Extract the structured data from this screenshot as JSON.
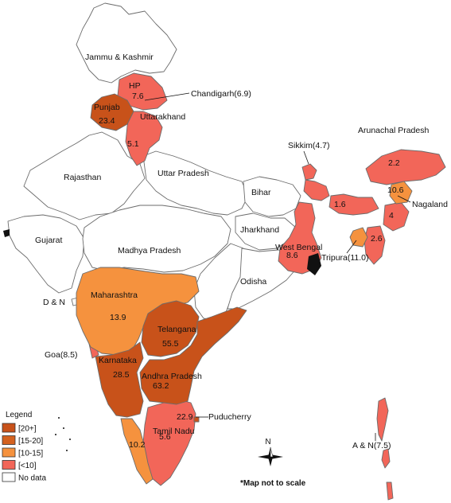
{
  "colors": {
    "band_20_plus": "#c8521a",
    "band_15_20": "#d4621f",
    "band_10_15": "#f5923e",
    "band_lt_10": "#f26659",
    "no_data": "#ffffff",
    "border": "#6b6b6b"
  },
  "legend": {
    "title": "Legend",
    "items": [
      {
        "label": "[20+]",
        "color_key": "band_20_plus"
      },
      {
        "label": "[15-20]",
        "color_key": "band_15_20"
      },
      {
        "label": "[10-15]",
        "color_key": "band_10_15"
      },
      {
        "label": "[<10]",
        "color_key": "band_lt_10"
      },
      {
        "label": "No data",
        "color_key": "no_data"
      }
    ]
  },
  "regions": [
    {
      "name": "Jammu & Kashmir",
      "value": null,
      "band": "no_data"
    },
    {
      "name": "HP",
      "value": 7.6,
      "band": "band_lt_10"
    },
    {
      "name": "Chandigarh",
      "value": 6.9,
      "band": "band_lt_10"
    },
    {
      "name": "Punjab",
      "value": 23.4,
      "band": "band_20_plus"
    },
    {
      "name": "Uttarakhand",
      "value": 5.1,
      "band": "band_lt_10"
    },
    {
      "name": "Rajasthan",
      "value": null,
      "band": "no_data"
    },
    {
      "name": "Uttar Pradesh",
      "value": null,
      "band": "no_data"
    },
    {
      "name": "Bihar",
      "value": null,
      "band": "no_data"
    },
    {
      "name": "Sikkim",
      "value": 4.7,
      "band": "band_lt_10"
    },
    {
      "name": "Arunachal Pradesh",
      "value": 2.2,
      "band": "band_lt_10"
    },
    {
      "name": "Assam",
      "value": 1.6,
      "band": "band_lt_10"
    },
    {
      "name": "Nagaland",
      "value": 10.6,
      "band": "band_10_15"
    },
    {
      "name": "Manipur",
      "value": 4,
      "band": "band_lt_10"
    },
    {
      "name": "Mizoram",
      "value": 2.6,
      "band": "band_lt_10"
    },
    {
      "name": "Tripura",
      "value": 11.0,
      "band": "band_10_15"
    },
    {
      "name": "Jharkhand",
      "value": null,
      "band": "no_data"
    },
    {
      "name": "West Bengal",
      "value": 8.6,
      "band": "band_lt_10"
    },
    {
      "name": "Gujarat",
      "value": null,
      "band": "no_data"
    },
    {
      "name": "Madhya Pradesh",
      "value": null,
      "band": "no_data"
    },
    {
      "name": "Odisha",
      "value": null,
      "band": "no_data"
    },
    {
      "name": "D & N",
      "value": null,
      "band": "no_data"
    },
    {
      "name": "Maharashtra",
      "value": 13.9,
      "band": "band_10_15"
    },
    {
      "name": "Telangana",
      "value": 55.5,
      "band": "band_20_plus"
    },
    {
      "name": "Goa",
      "value": 8.5,
      "band": "band_lt_10"
    },
    {
      "name": "Karnataka",
      "value": 28.5,
      "band": "band_20_plus"
    },
    {
      "name": "Andhra Pradesh",
      "value": 63.2,
      "band": "band_20_plus"
    },
    {
      "name": "Puducherry",
      "value": 22.9,
      "band": "band_20_plus"
    },
    {
      "name": "Tamil Nadu",
      "value": 5.6,
      "band": "band_lt_10"
    },
    {
      "name": "Kerala",
      "value": 10.2,
      "band": "band_10_15"
    },
    {
      "name": "A & N",
      "value": 7.5,
      "band": "band_lt_10"
    }
  ],
  "labels": {
    "jk": "Jammu & Kashmir",
    "hp": "HP",
    "hp_value": "7.6",
    "chandigarh": "Chandigarh(6.9)",
    "punjab": "Punjab",
    "punjab_value": "23.4",
    "uttarakhand": "Uttarakhand",
    "uttarakhand_value": "5.1",
    "rajasthan": "Rajasthan",
    "uttar_pradesh": "Uttar Pradesh",
    "bihar": "Bihar",
    "sikkim": "Sikkim(4.7)",
    "arunachal": "Arunachal Pradesh",
    "arunachal_value": "2.2",
    "assam_value": "1.6",
    "nagaland_value": "10.6",
    "nagaland": "Nagaland",
    "manipur_value": "4",
    "mizoram_value": "2.6",
    "tripura": "Tripura(11.0)",
    "jharkhand": "Jharkhand",
    "west_bengal": "West Bengal",
    "west_bengal_value": "8.6",
    "gujarat": "Gujarat",
    "madhya_pradesh": "Madhya Pradesh",
    "odisha": "Odisha",
    "dn": "D & N",
    "maharashtra": "Maharashtra",
    "maharashtra_value": "13.9",
    "telangana": "Telangana",
    "telangana_value": "55.5",
    "goa": "Goa(8.5)",
    "karnataka": "Karnataka",
    "karnataka_value": "28.5",
    "andhra": "Andhra Pradesh",
    "andhra_value": "63.2",
    "puducherry_value": "22.9",
    "puducherry": "Puducherry",
    "tamil_nadu": "Tamil Nadu",
    "tamil_nadu_value": "5.6",
    "kerala_value": "10.2",
    "an": "A & N(7.5)",
    "compass_n": "N",
    "scale_note": "*Map not to scale"
  }
}
